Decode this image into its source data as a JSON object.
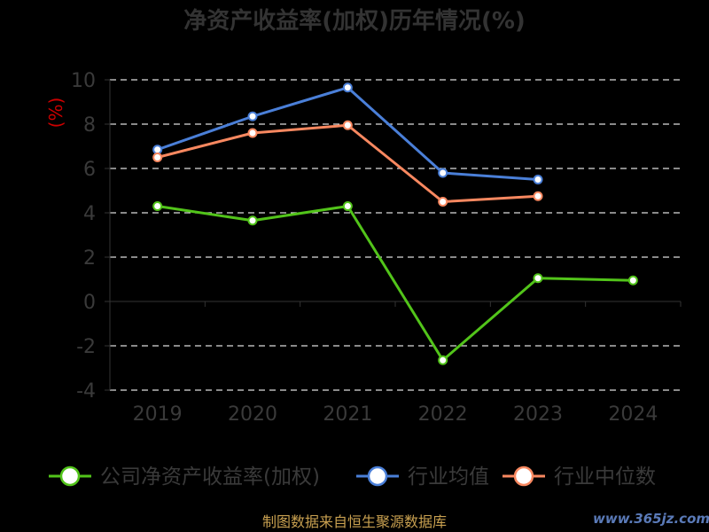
{
  "chart_data": {
    "type": "line",
    "title": "净资产收益率(加权)历年情况(%)",
    "ylabel": "(%)",
    "xlabel": "",
    "categories": [
      "2019",
      "2020",
      "2021",
      "2022",
      "2023",
      "2024"
    ],
    "ylim": [
      -4,
      10
    ],
    "yticks": [
      10,
      8,
      6,
      4,
      2,
      0,
      -2,
      -4
    ],
    "grid": true,
    "legend_position": "bottom",
    "series": [
      {
        "name": "公司净资产收益率(加权)",
        "color": "#52c41a",
        "values": [
          4.3,
          3.65,
          4.3,
          -2.65,
          1.05,
          0.95
        ]
      },
      {
        "name": "行业均值",
        "color": "#4a7fd8",
        "values": [
          6.85,
          8.35,
          9.65,
          5.8,
          5.5,
          null
        ]
      },
      {
        "name": "行业中位数",
        "color": "#f88860",
        "values": [
          6.5,
          7.6,
          7.95,
          4.5,
          4.75,
          null
        ]
      }
    ]
  },
  "footer": {
    "source": "制图数据来自恒生聚源数据库",
    "watermark": "www.365jz.com"
  }
}
